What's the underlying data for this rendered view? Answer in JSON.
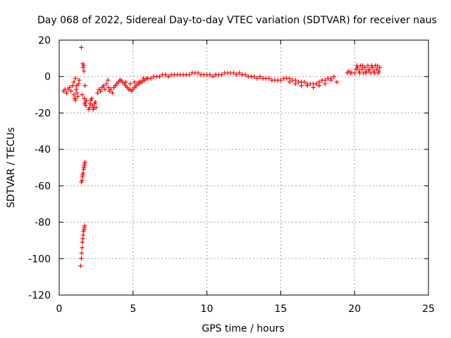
{
  "chart_data": {
    "type": "scatter",
    "title": "Day 068 of 2022, Sidereal Day-to-day VTEC variation (SDTVAR) for receiver naus",
    "xlabel": "GPS time / hours",
    "ylabel": "SDTVAR / TECUs",
    "xlim": [
      0,
      25
    ],
    "ylim": [
      -120,
      20
    ],
    "x_ticks": [
      0,
      5,
      10,
      15,
      20,
      25
    ],
    "y_ticks": [
      -120,
      -100,
      -80,
      -60,
      -40,
      -20,
      0,
      20
    ],
    "grid": true,
    "marker": "+",
    "color": "#ff0000",
    "series": [
      {
        "name": "SDTVAR",
        "points": [
          [
            0.3,
            -8
          ],
          [
            0.4,
            -7
          ],
          [
            0.5,
            -9
          ],
          [
            0.6,
            -7
          ],
          [
            0.7,
            -6
          ],
          [
            0.8,
            -8
          ],
          [
            0.9,
            -5
          ],
          [
            1.0,
            -3
          ],
          [
            1.0,
            -10
          ],
          [
            1.05,
            -12
          ],
          [
            1.1,
            -13
          ],
          [
            1.1,
            -1
          ],
          [
            1.15,
            -7
          ],
          [
            1.2,
            -9
          ],
          [
            1.2,
            -5
          ],
          [
            1.25,
            -11
          ],
          [
            1.3,
            -4
          ],
          [
            1.35,
            -2
          ],
          [
            1.5,
            16
          ],
          [
            1.55,
            -10
          ],
          [
            1.6,
            7
          ],
          [
            1.62,
            5
          ],
          [
            1.65,
            6
          ],
          [
            1.68,
            3
          ],
          [
            1.7,
            -12
          ],
          [
            1.72,
            -15
          ],
          [
            1.75,
            -5
          ],
          [
            1.78,
            -14
          ],
          [
            1.8,
            -16
          ],
          [
            1.85,
            -13
          ],
          [
            1.45,
            -104
          ],
          [
            1.5,
            -100
          ],
          [
            1.52,
            -97
          ],
          [
            1.55,
            -94
          ],
          [
            1.57,
            -91
          ],
          [
            1.6,
            -89
          ],
          [
            1.62,
            -87
          ],
          [
            1.65,
            -85
          ],
          [
            1.68,
            -84
          ],
          [
            1.7,
            -83
          ],
          [
            1.72,
            -82
          ],
          [
            1.5,
            -58
          ],
          [
            1.55,
            -57
          ],
          [
            1.58,
            -55
          ],
          [
            1.6,
            -54
          ],
          [
            1.62,
            -53
          ],
          [
            1.65,
            -51
          ],
          [
            1.68,
            -50
          ],
          [
            1.7,
            -49
          ],
          [
            1.72,
            -48
          ],
          [
            1.75,
            -47
          ],
          [
            2.0,
            -18
          ],
          [
            2.05,
            -17
          ],
          [
            2.1,
            -15
          ],
          [
            2.15,
            -13
          ],
          [
            2.2,
            -12
          ],
          [
            2.25,
            -16
          ],
          [
            2.3,
            -18
          ],
          [
            2.35,
            -17
          ],
          [
            2.4,
            -15
          ],
          [
            2.45,
            -14
          ],
          [
            2.5,
            -17
          ],
          [
            2.6,
            -9
          ],
          [
            2.7,
            -7
          ],
          [
            2.8,
            -8
          ],
          [
            2.9,
            -6
          ],
          [
            3.0,
            -5
          ],
          [
            3.1,
            -7
          ],
          [
            3.2,
            -4
          ],
          [
            3.3,
            -2
          ],
          [
            3.35,
            -6
          ],
          [
            3.4,
            -8
          ],
          [
            3.5,
            -7
          ],
          [
            3.6,
            -9
          ],
          [
            3.7,
            -6
          ],
          [
            3.8,
            -5
          ],
          [
            3.9,
            -4
          ],
          [
            4.0,
            -3
          ],
          [
            4.1,
            -2
          ],
          [
            4.2,
            -2
          ],
          [
            4.3,
            -3
          ],
          [
            4.4,
            -4
          ],
          [
            4.5,
            -5
          ],
          [
            4.6,
            -6
          ],
          [
            4.7,
            -7
          ],
          [
            4.8,
            -7
          ],
          [
            4.9,
            -8
          ],
          [
            5.0,
            -7
          ],
          [
            5.1,
            -6
          ],
          [
            5.2,
            -5
          ],
          [
            5.3,
            -4
          ],
          [
            5.4,
            -4
          ],
          [
            5.5,
            -3
          ],
          [
            5.6,
            -3
          ],
          [
            5.7,
            -2
          ],
          [
            5.8,
            -2
          ],
          [
            5.9,
            -1
          ],
          [
            4.5,
            -3
          ],
          [
            4.8,
            -4
          ],
          [
            5.1,
            -3
          ],
          [
            5.4,
            -3
          ],
          [
            5.7,
            -1
          ],
          [
            6.0,
            -1
          ],
          [
            6.2,
            -1
          ],
          [
            6.4,
            0
          ],
          [
            6.6,
            0
          ],
          [
            6.8,
            0
          ],
          [
            7.0,
            1
          ],
          [
            7.2,
            1
          ],
          [
            7.4,
            0
          ],
          [
            7.6,
            1
          ],
          [
            7.8,
            1
          ],
          [
            8.0,
            1
          ],
          [
            8.2,
            1
          ],
          [
            8.4,
            1
          ],
          [
            8.6,
            1
          ],
          [
            8.8,
            1
          ],
          [
            9.0,
            2
          ],
          [
            9.2,
            2
          ],
          [
            9.4,
            2
          ],
          [
            9.6,
            1
          ],
          [
            9.8,
            1
          ],
          [
            10.0,
            1
          ],
          [
            10.2,
            1
          ],
          [
            10.4,
            0
          ],
          [
            10.6,
            1
          ],
          [
            10.8,
            1
          ],
          [
            11.0,
            1
          ],
          [
            11.2,
            2
          ],
          [
            11.4,
            2
          ],
          [
            11.6,
            2
          ],
          [
            11.8,
            2
          ],
          [
            12.0,
            1
          ],
          [
            12.2,
            2
          ],
          [
            12.4,
            1
          ],
          [
            12.6,
            1
          ],
          [
            12.8,
            0
          ],
          [
            13.0,
            0
          ],
          [
            13.2,
            0
          ],
          [
            13.4,
            -1
          ],
          [
            13.6,
            0
          ],
          [
            13.8,
            -1
          ],
          [
            14.0,
            -1
          ],
          [
            14.2,
            -1
          ],
          [
            14.4,
            -2
          ],
          [
            14.6,
            -2
          ],
          [
            14.8,
            -2
          ],
          [
            15.0,
            -2
          ],
          [
            15.2,
            -1
          ],
          [
            15.4,
            -1
          ],
          [
            15.6,
            -1
          ],
          [
            15.8,
            -2
          ],
          [
            16.0,
            -2
          ],
          [
            16.2,
            -3
          ],
          [
            16.4,
            -3
          ],
          [
            16.6,
            -3
          ],
          [
            16.8,
            -4
          ],
          [
            17.0,
            -4
          ],
          [
            17.2,
            -4
          ],
          [
            17.4,
            -4
          ],
          [
            17.6,
            -3
          ],
          [
            17.8,
            -2
          ],
          [
            18.0,
            -2
          ],
          [
            18.2,
            -1
          ],
          [
            18.4,
            -1
          ],
          [
            18.6,
            0
          ],
          [
            15.6,
            -3
          ],
          [
            16.0,
            -4
          ],
          [
            16.4,
            -5
          ],
          [
            16.8,
            -5
          ],
          [
            17.2,
            -6
          ],
          [
            17.6,
            -5
          ],
          [
            18.0,
            -4
          ],
          [
            18.4,
            -2
          ],
          [
            18.8,
            -3
          ],
          [
            19.5,
            2
          ],
          [
            19.6,
            3
          ],
          [
            19.7,
            2
          ],
          [
            19.8,
            2
          ],
          [
            20.0,
            2
          ],
          [
            20.1,
            4
          ],
          [
            20.2,
            5
          ],
          [
            20.3,
            3
          ],
          [
            20.4,
            6
          ],
          [
            20.5,
            4
          ],
          [
            20.6,
            2
          ],
          [
            20.7,
            5
          ],
          [
            20.8,
            3
          ],
          [
            20.9,
            6
          ],
          [
            21.0,
            4
          ],
          [
            21.1,
            2
          ],
          [
            21.2,
            5
          ],
          [
            21.3,
            3
          ],
          [
            21.4,
            6
          ],
          [
            21.5,
            4
          ],
          [
            21.6,
            2
          ],
          [
            21.7,
            5
          ],
          [
            20.15,
            6
          ],
          [
            20.35,
            2
          ],
          [
            20.55,
            6
          ],
          [
            20.75,
            2
          ],
          [
            20.95,
            3
          ],
          [
            21.15,
            6
          ],
          [
            21.35,
            2
          ],
          [
            21.55,
            6
          ],
          [
            21.65,
            3
          ]
        ]
      }
    ]
  }
}
